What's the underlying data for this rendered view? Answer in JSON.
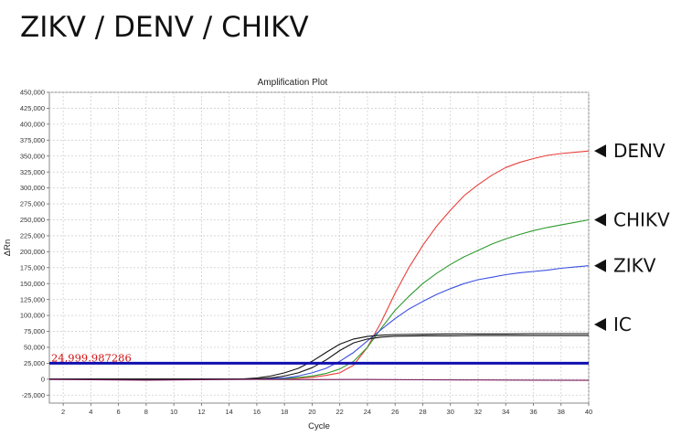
{
  "page_title": "ZIKV / DENV / CHIKV",
  "chart_data": {
    "type": "line",
    "title": "Amplification Plot",
    "xlabel": "Cycle",
    "ylabel": "ΔRn",
    "xlim": [
      1,
      40
    ],
    "ylim": [
      -37500,
      450000
    ],
    "x_ticks": [
      2,
      4,
      6,
      8,
      10,
      12,
      14,
      16,
      18,
      20,
      22,
      24,
      26,
      28,
      30,
      32,
      34,
      36,
      38,
      40
    ],
    "y_ticks": [
      -25000,
      0,
      25000,
      50000,
      75000,
      100000,
      125000,
      150000,
      175000,
      200000,
      225000,
      250000,
      275000,
      300000,
      325000,
      350000,
      375000,
      400000,
      425000,
      450000
    ],
    "y_tick_labels": [
      "-25,000",
      "0",
      "25,000",
      "50,000",
      "75,000",
      "100,000",
      "125,000",
      "150,000",
      "175,000",
      "200,000",
      "225,000",
      "250,000",
      "275,000",
      "300,000",
      "325,000",
      "350,000",
      "375,000",
      "400,000",
      "425,000",
      "450,000"
    ],
    "grid": true,
    "threshold": {
      "value": 24999.987286,
      "label": "24,999.987286",
      "color": "#1010b0"
    },
    "series": [
      {
        "name": "DENV",
        "color": "#e8403a",
        "x": [
          1,
          14,
          16,
          18,
          19,
          20,
          21,
          22,
          23,
          24,
          25,
          26,
          27,
          28,
          29,
          30,
          31,
          32,
          33,
          34,
          35,
          36,
          37,
          38,
          39,
          40
        ],
        "y": [
          0,
          0,
          200,
          800,
          1500,
          3000,
          6000,
          10000,
          22000,
          50000,
          90000,
          135000,
          175000,
          210000,
          240000,
          265000,
          288000,
          305000,
          320000,
          332000,
          340000,
          346000,
          351000,
          354000,
          356000,
          358000
        ]
      },
      {
        "name": "CHIKV",
        "color": "#2e9a2e",
        "x": [
          1,
          14,
          16,
          18,
          19,
          20,
          21,
          22,
          23,
          24,
          25,
          26,
          27,
          28,
          29,
          30,
          31,
          32,
          33,
          34,
          35,
          36,
          37,
          38,
          39,
          40
        ],
        "y": [
          0,
          0,
          300,
          1000,
          2500,
          5000,
          9000,
          16000,
          28000,
          50000,
          80000,
          108000,
          130000,
          150000,
          166000,
          180000,
          192000,
          202000,
          212000,
          220000,
          227000,
          233000,
          238000,
          242000,
          246000,
          250000
        ]
      },
      {
        "name": "ZIKV",
        "color": "#3a4fe0",
        "x": [
          1,
          14,
          16,
          18,
          19,
          20,
          21,
          22,
          23,
          24,
          25,
          26,
          27,
          28,
          29,
          30,
          31,
          32,
          33,
          34,
          35,
          36,
          37,
          38,
          39,
          40
        ],
        "y": [
          0,
          0,
          500,
          2000,
          5000,
          10000,
          17000,
          28000,
          42000,
          60000,
          78000,
          95000,
          110000,
          122000,
          133000,
          142000,
          150000,
          156000,
          160000,
          164000,
          167000,
          169000,
          171000,
          174000,
          176000,
          178000
        ]
      },
      {
        "name": "IC",
        "color": "#111111",
        "x": [
          1,
          14,
          15,
          16,
          17,
          18,
          19,
          20,
          21,
          22,
          23,
          24,
          25,
          26,
          28,
          30,
          32,
          34,
          36,
          38,
          40
        ],
        "y": [
          0,
          0,
          500,
          2000,
          5000,
          10000,
          17000,
          28000,
          42000,
          55000,
          63000,
          67000,
          69000,
          70000,
          70500,
          71000,
          71000,
          71000,
          71500,
          71500,
          71500
        ]
      },
      {
        "name": "IC",
        "color": "#111111",
        "x": [
          1,
          14,
          16,
          17,
          18,
          19,
          20,
          21,
          22,
          23,
          24,
          25,
          26,
          28,
          30,
          32,
          34,
          36,
          38,
          40
        ],
        "y": [
          0,
          0,
          500,
          2000,
          5000,
          10000,
          18000,
          30000,
          45000,
          57000,
          63000,
          66000,
          67500,
          68000,
          68000,
          68500,
          68500,
          68500,
          68500,
          68500
        ]
      },
      {
        "name": "",
        "color": "#7a1a5a",
        "x": [
          1,
          4,
          8,
          12,
          16,
          20,
          24,
          28,
          32,
          36,
          40
        ],
        "y": [
          -500,
          -1000,
          -1500,
          -800,
          -300,
          -600,
          -500,
          -900,
          -1200,
          -1500,
          -1800
        ]
      }
    ],
    "series_labels": [
      "DENV",
      "CHIKV",
      "ZIKV",
      "IC"
    ]
  }
}
